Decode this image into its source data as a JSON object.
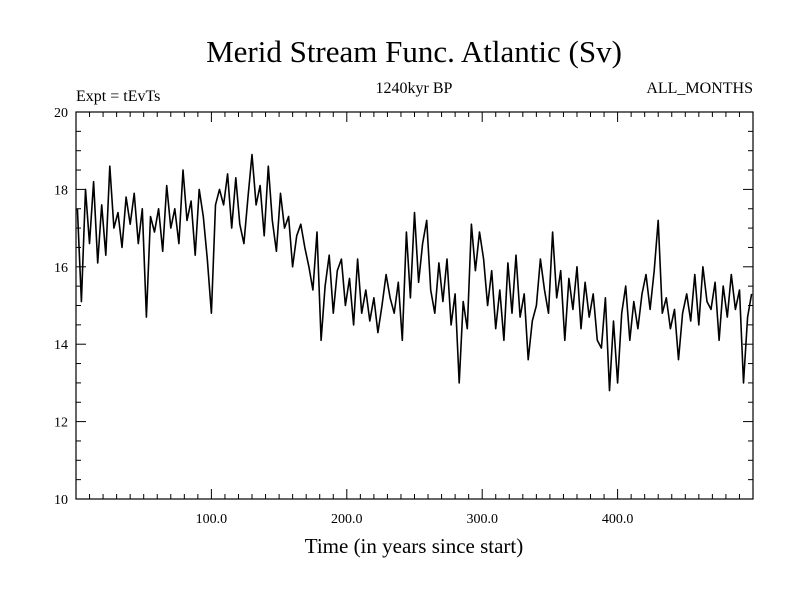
{
  "chart_data": {
    "type": "line",
    "title": "Merid Stream Func. Atlantic (Sv)",
    "subtitle_left": "Expt = tEvTs",
    "subtitle_center": "1240kyr BP",
    "subtitle_right": "ALL_MONTHS",
    "xlabel": "Time (in years since start)",
    "ylabel": "",
    "xlim": [
      0,
      500
    ],
    "ylim": [
      10,
      20
    ],
    "x_ticks": [
      {
        "value": 100,
        "label": "100.0"
      },
      {
        "value": 200,
        "label": "200.0"
      },
      {
        "value": 300,
        "label": "300.0"
      },
      {
        "value": 400,
        "label": "400.0"
      }
    ],
    "y_ticks": [
      {
        "value": 10,
        "label": "10"
      },
      {
        "value": 12,
        "label": "12"
      },
      {
        "value": 14,
        "label": "14"
      },
      {
        "value": 16,
        "label": "16"
      },
      {
        "value": 18,
        "label": "18"
      },
      {
        "value": 20,
        "label": "20"
      }
    ],
    "series": [
      {
        "name": "Merid Stream Func. Atlantic",
        "color": "#000000",
        "x": [
          1,
          4,
          7,
          10,
          13,
          16,
          19,
          22,
          25,
          28,
          31,
          34,
          37,
          40,
          43,
          46,
          49,
          52,
          55,
          58,
          61,
          64,
          67,
          70,
          73,
          76,
          79,
          82,
          85,
          88,
          91,
          94,
          97,
          100,
          103,
          106,
          109,
          112,
          115,
          118,
          121,
          124,
          127,
          130,
          133,
          136,
          139,
          142,
          145,
          148,
          151,
          154,
          157,
          160,
          163,
          166,
          169,
          172,
          175,
          178,
          181,
          184,
          187,
          190,
          193,
          196,
          199,
          202,
          205,
          208,
          211,
          214,
          217,
          220,
          223,
          226,
          229,
          232,
          235,
          238,
          241,
          244,
          247,
          250,
          253,
          256,
          259,
          262,
          265,
          268,
          271,
          274,
          277,
          280,
          283,
          286,
          289,
          292,
          295,
          298,
          301,
          304,
          307,
          310,
          313,
          316,
          319,
          322,
          325,
          328,
          331,
          334,
          337,
          340,
          343,
          346,
          349,
          352,
          355,
          358,
          361,
          364,
          367,
          370,
          373,
          376,
          379,
          382,
          385,
          388,
          391,
          394,
          397,
          400,
          403,
          406,
          409,
          412,
          415,
          418,
          421,
          424,
          427,
          430,
          433,
          436,
          439,
          442,
          445,
          448,
          451,
          454,
          457,
          460,
          463,
          466,
          469,
          472,
          475,
          478,
          481,
          484,
          487,
          490,
          493,
          496,
          499
        ],
        "y": [
          17.5,
          15.1,
          18.0,
          16.6,
          18.2,
          16.1,
          17.6,
          16.3,
          18.6,
          17.0,
          17.4,
          16.5,
          17.8,
          17.1,
          17.9,
          16.6,
          17.5,
          14.7,
          17.3,
          16.9,
          17.5,
          16.4,
          18.1,
          17.0,
          17.5,
          16.6,
          18.5,
          17.2,
          17.7,
          16.3,
          18.0,
          17.3,
          16.2,
          14.8,
          17.6,
          18.0,
          17.6,
          18.4,
          17.0,
          18.3,
          17.1,
          16.6,
          17.8,
          18.9,
          17.6,
          18.1,
          16.8,
          18.6,
          17.2,
          16.4,
          17.9,
          17.0,
          17.3,
          16.0,
          16.8,
          17.1,
          16.5,
          16.0,
          15.4,
          16.9,
          14.1,
          15.5,
          16.3,
          14.8,
          15.9,
          16.2,
          15.0,
          15.7,
          14.5,
          16.2,
          14.8,
          15.4,
          14.6,
          15.2,
          14.3,
          15.0,
          15.8,
          15.2,
          14.8,
          15.6,
          14.1,
          16.9,
          15.2,
          17.4,
          15.6,
          16.6,
          17.2,
          15.4,
          14.8,
          16.1,
          15.1,
          16.2,
          14.5,
          15.3,
          13.0,
          15.1,
          14.4,
          17.1,
          15.9,
          16.9,
          16.2,
          15.0,
          15.9,
          14.4,
          15.4,
          14.1,
          16.1,
          14.8,
          16.3,
          14.7,
          15.3,
          13.6,
          14.6,
          15.0,
          16.2,
          15.4,
          14.8,
          16.9,
          15.2,
          15.9,
          14.1,
          15.7,
          14.9,
          16.0,
          14.4,
          15.6,
          14.7,
          15.3,
          14.1,
          13.9,
          15.2,
          12.8,
          14.6,
          13.0,
          14.8,
          15.5,
          14.1,
          15.1,
          14.4,
          15.3,
          15.8,
          14.9,
          15.9,
          17.2,
          14.8,
          15.2,
          14.4,
          14.9,
          13.6,
          14.8,
          15.3,
          14.6,
          15.8,
          14.5,
          16.0,
          15.1,
          14.9,
          15.6,
          14.1,
          15.5,
          14.7,
          15.8,
          14.9,
          15.4,
          13.0,
          14.7,
          15.3
        ]
      }
    ]
  }
}
